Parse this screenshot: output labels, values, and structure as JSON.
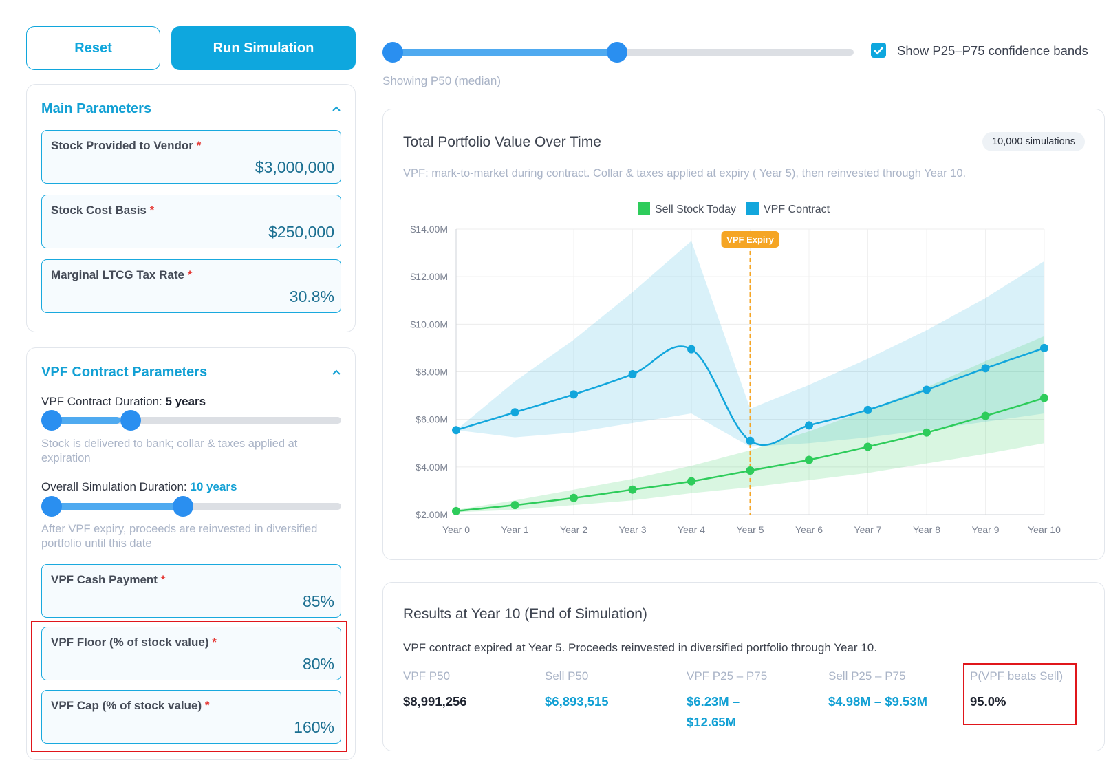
{
  "toolbar": {
    "reset_label": "Reset",
    "run_label": "Run Simulation"
  },
  "main_params": {
    "title": "Main Parameters",
    "fields": [
      {
        "label": "Stock Provided to Vendor",
        "required": "*",
        "value": "$3,000,000"
      },
      {
        "label": "Stock Cost Basis",
        "required": "*",
        "value": "$250,000"
      },
      {
        "label": "Marginal LTCG Tax Rate",
        "required": "*",
        "value": "30.8%"
      }
    ]
  },
  "vpf_params": {
    "title": "VPF Contract Parameters",
    "contract_duration": {
      "label": "VPF Contract Duration:",
      "value": "5 years",
      "help": "Stock is delivered to bank; collar & taxes applied at expiration"
    },
    "sim_duration": {
      "label": "Overall Simulation Duration:",
      "value": "10 years",
      "help": "After VPF expiry, proceeds are reinvested in diversified portfolio until this date"
    },
    "fields": [
      {
        "label": "VPF Cash Payment",
        "required": "*",
        "value": "85%"
      },
      {
        "label": "VPF Floor (% of stock value)",
        "required": "*",
        "value": "80%"
      },
      {
        "label": "VPF Cap (% of stock value)",
        "required": "*",
        "value": "160%"
      }
    ]
  },
  "controls": {
    "percentile_label": "Showing P50 (median)",
    "confidence_label": "Show P25–P75 confidence bands",
    "confidence_checked": true
  },
  "chart_card": {
    "title": "Total Portfolio Value Over Time",
    "badge": "10,000 simulations",
    "subtitle": "VPF: mark-to-market during contract. Collar & taxes applied at expiry ( Year 5), then reinvested through Year 10."
  },
  "chart_data": {
    "type": "line",
    "categories": [
      "Year 0",
      "Year 1",
      "Year 2",
      "Year 3",
      "Year 4",
      "Year 5",
      "Year 6",
      "Year 7",
      "Year 8",
      "Year 9",
      "Year 10"
    ],
    "ylim": [
      2,
      14
    ],
    "yticks": [
      "$2.00M",
      "$4.00M",
      "$6.00M",
      "$8.00M",
      "$10.00M",
      "$12.00M",
      "$14.00M"
    ],
    "legend_position": "top-center",
    "grid": true,
    "annotation": {
      "label": "VPF Expiry",
      "x": "Year 5"
    },
    "series": [
      {
        "name": "Sell Stock Today",
        "color": "#2ecc5b",
        "values": [
          2.15,
          2.4,
          2.7,
          3.05,
          3.4,
          3.85,
          4.3,
          4.85,
          5.45,
          6.15,
          6.9
        ],
        "p25": [
          2.1,
          2.2,
          2.4,
          2.6,
          2.9,
          3.15,
          3.45,
          3.75,
          4.15,
          4.55,
          5.0
        ],
        "p75": [
          2.2,
          2.6,
          3.05,
          3.5,
          4.05,
          4.7,
          5.5,
          6.4,
          7.35,
          8.45,
          9.5
        ]
      },
      {
        "name": "VPF Contract",
        "color": "#12a6dc",
        "values": [
          5.55,
          6.3,
          7.05,
          7.9,
          8.95,
          5.1,
          5.75,
          6.4,
          7.25,
          8.15,
          9.0
        ],
        "p25": [
          5.55,
          5.25,
          5.45,
          5.85,
          6.25,
          4.85,
          5.0,
          5.25,
          5.55,
          5.9,
          6.25
        ],
        "p75": [
          5.55,
          7.6,
          9.35,
          11.35,
          13.5,
          6.45,
          7.45,
          8.55,
          9.75,
          11.1,
          12.65
        ]
      }
    ]
  },
  "results": {
    "title": "Results at Year 10 (End of Simulation)",
    "note": "VPF contract expired at Year 5. Proceeds reinvested in diversified portfolio through Year 10.",
    "cols": [
      {
        "label": "VPF P50",
        "value": "$8,991,256"
      },
      {
        "label": "Sell P50",
        "value": "$6,893,515"
      },
      {
        "label": "VPF P25 – P75",
        "value": "$6.23M – $12.65M"
      },
      {
        "label": "Sell P25 – P75",
        "value": "$4.98M – $9.53M"
      },
      {
        "label": "P(VPF beats Sell)",
        "value": "95.0%"
      }
    ]
  }
}
